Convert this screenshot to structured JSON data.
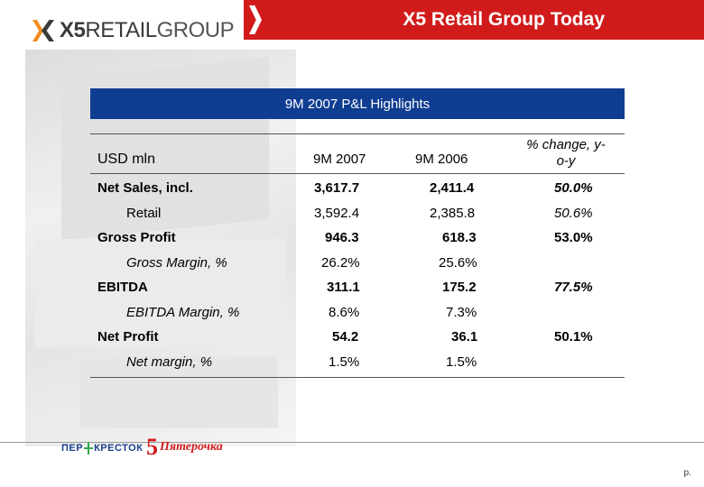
{
  "header": {
    "logo_text_bold": "X5",
    "logo_text_mid": "RETAIL",
    "logo_text_light": "GROUP",
    "title": "X5 Retail Group Today"
  },
  "section": {
    "title": "9M 2007 P&L Highlights"
  },
  "table": {
    "unit_label": "USD mln",
    "columns": [
      "9M 2007",
      "9M 2006",
      "% change, y-o-y"
    ],
    "rows": [
      {
        "label": "Net Sales, incl.",
        "v1": "3,617.7",
        "v2": "2,411.4",
        "v3": "50.0%"
      },
      {
        "label": "Retail",
        "v1": "3,592.4",
        "v2": "2,385.8",
        "v3": "50.6%"
      },
      {
        "label": "Gross Profit",
        "v1": "946.3",
        "v2": "618.3",
        "v3": "53.0%"
      },
      {
        "label": "Gross Margin, %",
        "v1": "26.2%",
        "v2": "25.6%",
        "v3": ""
      },
      {
        "label": "EBITDA",
        "v1": "311.1",
        "v2": "175.2",
        "v3": "77.5%"
      },
      {
        "label": "EBITDA Margin, %",
        "v1": "8.6%",
        "v2": "7.3%",
        "v3": ""
      },
      {
        "label": "Net Profit",
        "v1": "54.2",
        "v2": "36.1",
        "v3": "50.1%"
      },
      {
        "label": "Net margin, %",
        "v1": "1.5%",
        "v2": "1.5%",
        "v3": ""
      }
    ]
  },
  "footer": {
    "brand1_a": "ПЕР",
    "brand1_b": "КРЕСТОК",
    "brand2_num": "5",
    "brand2_name": "Пятерочка",
    "page": "p."
  },
  "colors": {
    "title_bar": "#d11b1b",
    "section_band": "#0f3d91",
    "logo_orange": "#f28a1e"
  }
}
